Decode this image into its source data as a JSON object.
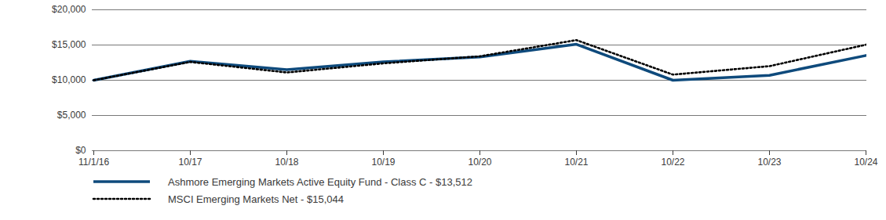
{
  "chart_data": {
    "type": "line",
    "categories": [
      "11/1/16",
      "10/17",
      "10/18",
      "10/19",
      "10/20",
      "10/21",
      "10/22",
      "10/23",
      "10/24"
    ],
    "series": [
      {
        "name": "Ashmore Emerging Markets Active Equity Fund - Class C - $13,512",
        "color": "#0e4a7c",
        "line_style": "solid",
        "values": [
          10000,
          12700,
          11500,
          12600,
          13300,
          15100,
          10000,
          10700,
          13512
        ]
      },
      {
        "name": "MSCI Emerging Markets Net - $15,044",
        "color": "#000000",
        "line_style": "dotted",
        "values": [
          10000,
          12600,
          11100,
          12400,
          13400,
          15700,
          10800,
          12000,
          15044
        ]
      }
    ],
    "ylim": [
      0,
      20000
    ],
    "yticks": [
      {
        "value": 0,
        "label": "$0"
      },
      {
        "value": 5000,
        "label": "$5,000"
      },
      {
        "value": 10000,
        "label": "$10,000"
      },
      {
        "value": 15000,
        "label": "$15,000"
      },
      {
        "value": 20000,
        "label": "$20,000"
      }
    ],
    "grid": true
  }
}
